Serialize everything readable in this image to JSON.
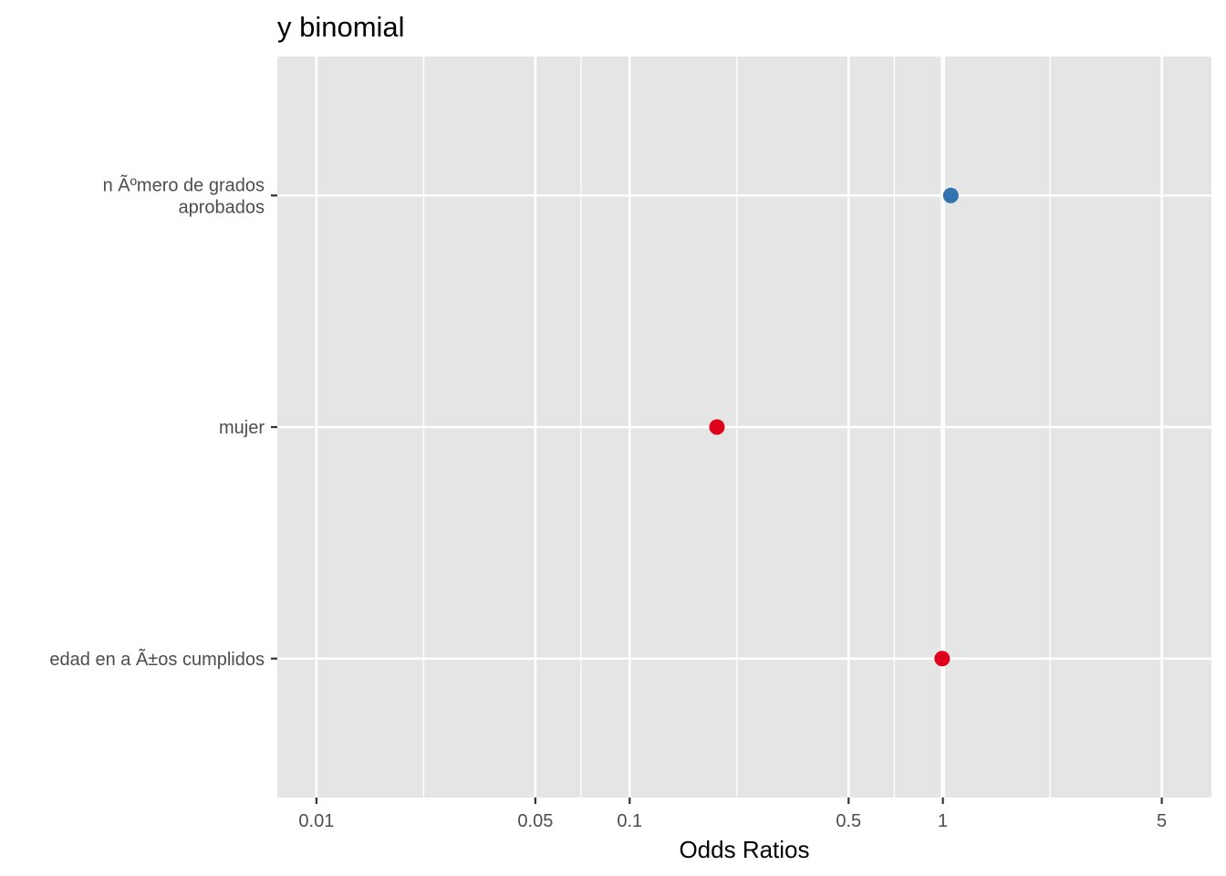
{
  "chart_data": {
    "type": "scatter",
    "title": "y binomial",
    "xlabel": "Odds Ratios",
    "ylabel": "",
    "x_scale": "log",
    "xlim": [
      0.0075,
      7.2
    ],
    "x_ticks": [
      {
        "value": 0.01,
        "label": "0.01"
      },
      {
        "value": 0.05,
        "label": "0.05"
      },
      {
        "value": 0.1,
        "label": "0.1"
      },
      {
        "value": 0.5,
        "label": "0.5"
      },
      {
        "value": 1,
        "label": "1"
      },
      {
        "value": 5,
        "label": "5"
      }
    ],
    "x_minor_gridlines": [
      0.022,
      0.07,
      0.22,
      0.7,
      2.2
    ],
    "reference_line": 1,
    "categories": [
      {
        "label_lines": [
          "n Ãºmero de grados",
          "aprobados"
        ]
      },
      {
        "label_lines": [
          "mujer"
        ]
      },
      {
        "label_lines": [
          "edad en a Ã±os cumplidos"
        ]
      }
    ],
    "points": [
      {
        "category_index": 0,
        "value": 1.06,
        "color": "#3174b0"
      },
      {
        "category_index": 1,
        "value": 0.19,
        "color": "#de001b"
      },
      {
        "category_index": 2,
        "value": 0.995,
        "color": "#de001b"
      }
    ],
    "grid": true,
    "panel_color": "#e5e5e5",
    "grid_color": "#ffffff"
  }
}
